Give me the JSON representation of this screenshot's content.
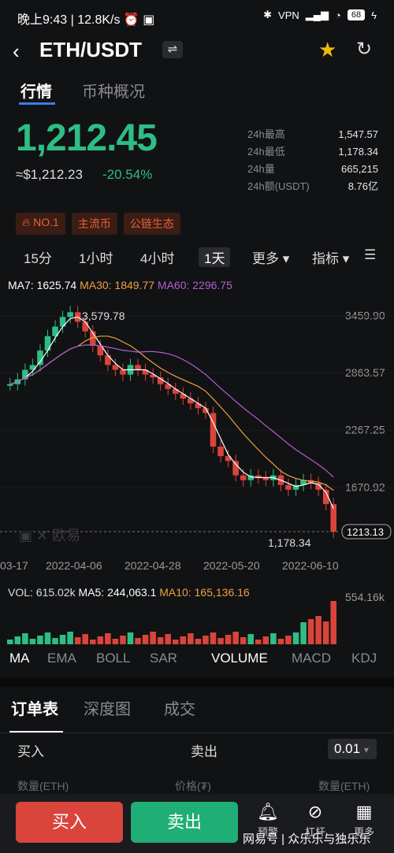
{
  "status": {
    "time": "晚上9:43",
    "speed": "12.8K/s",
    "battery": "68"
  },
  "header": {
    "pair": "ETH/USDT",
    "swap_icon": "⇌"
  },
  "tabs": [
    "行情",
    "币种概况"
  ],
  "price": {
    "last": "1,212.45",
    "usd": "≈$1,212.23",
    "change": "-20.54%"
  },
  "stats": [
    {
      "k": "24h最高",
      "v": "1,547.57"
    },
    {
      "k": "24h最低",
      "v": "1,178.34"
    },
    {
      "k": "24h量",
      "v": "665,215"
    },
    {
      "k": "24h额(USDT)",
      "v": "8.76亿"
    }
  ],
  "badges": [
    "NO.1",
    "主流币",
    "公链生态"
  ],
  "intervals": [
    "15分",
    "1小时",
    "4小时",
    "1天",
    "更多",
    "指标"
  ],
  "ma": {
    "ma7": "MA7: 1625.74",
    "ma30": "MA30: 1849.77",
    "ma60": "MA60: 2296.75"
  },
  "colors": {
    "up": "#2ebd85",
    "down": "#d9443b",
    "ma7": "#ffffff",
    "ma30": "#f0a040",
    "ma60": "#b060d0"
  },
  "chart_data": {
    "type": "line",
    "yticks": [
      "3459.90",
      "2863.57",
      "2267.25",
      "1670.92"
    ],
    "xticks": [
      "03-17",
      "2022-04-06",
      "2022-04-28",
      "2022-05-20",
      "2022-06-10"
    ],
    "high_label": "3,579.78",
    "low_label": "1,178.34",
    "current": "1213.13",
    "ylim": [
      1074,
      3700
    ],
    "closes": [
      2750,
      2800,
      2900,
      2950,
      3100,
      3250,
      3350,
      3450,
      3500,
      3400,
      3300,
      3150,
      3050,
      2950,
      2900,
      2850,
      2950,
      2900,
      2850,
      2820,
      2750,
      2700,
      2650,
      2600,
      2550,
      2500,
      2450,
      2100,
      2000,
      1950,
      1800,
      1750,
      1800,
      1780,
      1750,
      1800,
      1700,
      1650,
      1700,
      1750,
      1720,
      1650,
      1500,
      1213
    ]
  },
  "vol": {
    "vol": "VOL: 615.02k",
    "ma5": "MA5: 244,063.1",
    "ma10": "MA10: 165,136.16",
    "max": "554.16k"
  },
  "indicators": [
    "MA",
    "EMA",
    "BOLL",
    "SAR",
    "VOLUME",
    "MACD",
    "KDJ"
  ],
  "orderbook": {
    "tabs": [
      "订单表",
      "深度图",
      "成交"
    ],
    "buy": "买入",
    "sell": "卖出",
    "step": "0.01",
    "cols": [
      "数量(ETH)",
      "价格(₮)",
      "数量(ETH)"
    ]
  },
  "bottom": {
    "buy": "买入",
    "sell": "卖出",
    "icons": [
      "预警",
      "杠杆",
      "更多"
    ]
  },
  "watermark": "网易号 | 众乐乐与独乐乐"
}
